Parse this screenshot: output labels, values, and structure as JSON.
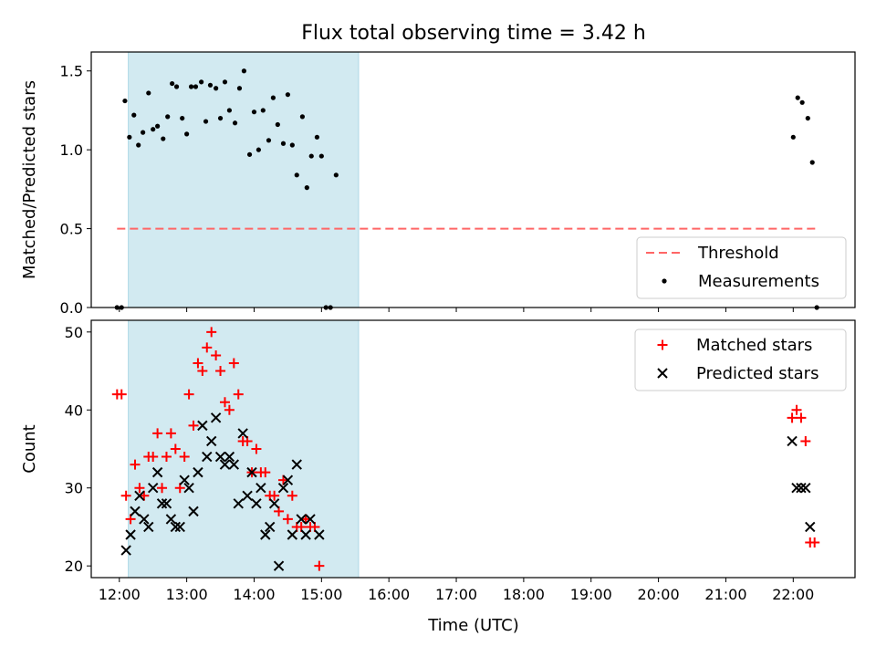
{
  "title": "Flux total observing time = 3.42 h",
  "xlabel": "Time (UTC)",
  "shade_color": "#add8e6",
  "colors": {
    "threshold": "#ff6666",
    "measurements": "#000000",
    "matched": "#ff0000",
    "predicted": "#000000"
  },
  "chart_data": [
    {
      "type": "scatter",
      "panel": "top",
      "ylabel": "Matched/Predicted stars",
      "ylim": [
        0,
        1.62
      ],
      "yticks": [
        "0.0",
        "0.5",
        "1.0",
        "1.5"
      ],
      "ytick_values": [
        0,
        0.5,
        1.0,
        1.5
      ],
      "xlim": [
        "11:35",
        "22:55"
      ],
      "shaded_interval": [
        "12:08",
        "15:33"
      ],
      "legend": {
        "placement": "lower right",
        "entries": [
          "Threshold",
          "Measurements"
        ]
      },
      "series": [
        {
          "name": "Threshold",
          "kind": "dashed-line",
          "points": [
            [
              "11:58",
              0.5
            ],
            [
              "22:20",
              0.5
            ]
          ]
        },
        {
          "name": "Measurements",
          "kind": "dots",
          "points": [
            [
              "11:58",
              0.0
            ],
            [
              "12:02",
              0.0
            ],
            [
              "12:05",
              1.31
            ],
            [
              "12:09",
              1.08
            ],
            [
              "12:13",
              1.22
            ],
            [
              "12:17",
              1.03
            ],
            [
              "12:21",
              1.11
            ],
            [
              "12:26",
              1.36
            ],
            [
              "12:30",
              1.13
            ],
            [
              "12:34",
              1.15
            ],
            [
              "12:39",
              1.07
            ],
            [
              "12:43",
              1.21
            ],
            [
              "12:47",
              1.42
            ],
            [
              "12:51",
              1.4
            ],
            [
              "12:56",
              1.2
            ],
            [
              "13:00",
              1.1
            ],
            [
              "13:04",
              1.4
            ],
            [
              "13:08",
              1.4
            ],
            [
              "13:13",
              1.43
            ],
            [
              "13:17",
              1.18
            ],
            [
              "13:21",
              1.41
            ],
            [
              "13:26",
              1.39
            ],
            [
              "13:30",
              1.2
            ],
            [
              "13:34",
              1.43
            ],
            [
              "13:38",
              1.25
            ],
            [
              "13:43",
              1.17
            ],
            [
              "13:47",
              1.39
            ],
            [
              "13:51",
              1.5
            ],
            [
              "13:56",
              0.97
            ],
            [
              "14:00",
              1.24
            ],
            [
              "14:04",
              1.0
            ],
            [
              "14:08",
              1.25
            ],
            [
              "14:13",
              1.06
            ],
            [
              "14:17",
              1.33
            ],
            [
              "14:21",
              1.16
            ],
            [
              "14:26",
              1.04
            ],
            [
              "14:30",
              1.35
            ],
            [
              "14:34",
              1.03
            ],
            [
              "14:38",
              0.84
            ],
            [
              "14:43",
              1.21
            ],
            [
              "14:47",
              0.76
            ],
            [
              "14:51",
              0.96
            ],
            [
              "14:56",
              1.08
            ],
            [
              "15:00",
              0.96
            ],
            [
              "15:04",
              0.0
            ],
            [
              "15:08",
              0.0
            ],
            [
              "15:13",
              0.84
            ],
            [
              "22:00",
              1.08
            ],
            [
              "22:04",
              1.33
            ],
            [
              "22:08",
              1.3
            ],
            [
              "22:13",
              1.2
            ],
            [
              "22:17",
              0.92
            ],
            [
              "22:21",
              0.0
            ]
          ]
        }
      ]
    },
    {
      "type": "scatter",
      "panel": "bottom",
      "ylabel": "Count",
      "ylim": [
        18.5,
        51.5
      ],
      "yticks": [
        "20",
        "30",
        "40",
        "50"
      ],
      "ytick_values": [
        20,
        30,
        40,
        50
      ],
      "xlim": [
        "11:35",
        "22:55"
      ],
      "xticks": [
        "12:00",
        "13:00",
        "14:00",
        "15:00",
        "16:00",
        "17:00",
        "18:00",
        "19:00",
        "20:00",
        "21:00",
        "22:00"
      ],
      "shaded_interval": [
        "12:08",
        "15:33"
      ],
      "legend": {
        "placement": "upper right",
        "entries": [
          "Matched stars",
          "Predicted stars"
        ]
      },
      "series": [
        {
          "name": "Matched stars",
          "marker": "+",
          "points": [
            [
              "11:58",
              42
            ],
            [
              "12:02",
              42
            ],
            [
              "12:06",
              29
            ],
            [
              "12:10",
              26
            ],
            [
              "12:14",
              33
            ],
            [
              "12:18",
              30
            ],
            [
              "12:22",
              29
            ],
            [
              "12:26",
              34
            ],
            [
              "12:30",
              34
            ],
            [
              "12:34",
              37
            ],
            [
              "12:38",
              30
            ],
            [
              "12:42",
              34
            ],
            [
              "12:46",
              37
            ],
            [
              "12:50",
              35
            ],
            [
              "12:54",
              30
            ],
            [
              "12:58",
              34
            ],
            [
              "13:02",
              42
            ],
            [
              "13:06",
              38
            ],
            [
              "13:10",
              46
            ],
            [
              "13:14",
              45
            ],
            [
              "13:18",
              48
            ],
            [
              "13:22",
              50
            ],
            [
              "13:26",
              47
            ],
            [
              "13:30",
              45
            ],
            [
              "13:34",
              41
            ],
            [
              "13:38",
              40
            ],
            [
              "13:42",
              46
            ],
            [
              "13:46",
              42
            ],
            [
              "13:50",
              36
            ],
            [
              "13:54",
              36
            ],
            [
              "13:58",
              32
            ],
            [
              "14:02",
              35
            ],
            [
              "14:06",
              32
            ],
            [
              "14:10",
              32
            ],
            [
              "14:14",
              29
            ],
            [
              "14:18",
              29
            ],
            [
              "14:22",
              27
            ],
            [
              "14:26",
              31
            ],
            [
              "14:30",
              26
            ],
            [
              "14:34",
              29
            ],
            [
              "14:38",
              25
            ],
            [
              "14:42",
              25
            ],
            [
              "14:46",
              26
            ],
            [
              "14:50",
              25
            ],
            [
              "14:54",
              25
            ],
            [
              "14:58",
              20
            ],
            [
              "21:59",
              39
            ],
            [
              "22:03",
              40
            ],
            [
              "22:07",
              39
            ],
            [
              "22:11",
              36
            ],
            [
              "22:15",
              23
            ],
            [
              "22:19",
              23
            ]
          ]
        },
        {
          "name": "Predicted stars",
          "marker": "x",
          "points": [
            [
              "12:06",
              22
            ],
            [
              "12:10",
              24
            ],
            [
              "12:14",
              27
            ],
            [
              "12:18",
              29
            ],
            [
              "12:22",
              26
            ],
            [
              "12:26",
              25
            ],
            [
              "12:30",
              30
            ],
            [
              "12:34",
              32
            ],
            [
              "12:38",
              28
            ],
            [
              "12:42",
              28
            ],
            [
              "12:46",
              26
            ],
            [
              "12:50",
              25
            ],
            [
              "12:54",
              25
            ],
            [
              "12:58",
              31
            ],
            [
              "13:02",
              30
            ],
            [
              "13:06",
              27
            ],
            [
              "13:10",
              32
            ],
            [
              "13:14",
              38
            ],
            [
              "13:18",
              34
            ],
            [
              "13:22",
              36
            ],
            [
              "13:26",
              39
            ],
            [
              "13:30",
              34
            ],
            [
              "13:34",
              33
            ],
            [
              "13:38",
              34
            ],
            [
              "13:42",
              33
            ],
            [
              "13:46",
              28
            ],
            [
              "13:50",
              37
            ],
            [
              "13:54",
              29
            ],
            [
              "13:58",
              32
            ],
            [
              "14:02",
              28
            ],
            [
              "14:06",
              30
            ],
            [
              "14:10",
              24
            ],
            [
              "14:14",
              25
            ],
            [
              "14:18",
              28
            ],
            [
              "14:22",
              20
            ],
            [
              "14:26",
              30
            ],
            [
              "14:30",
              31
            ],
            [
              "14:34",
              24
            ],
            [
              "14:38",
              33
            ],
            [
              "14:42",
              26
            ],
            [
              "14:46",
              24
            ],
            [
              "14:50",
              26
            ],
            [
              "14:58",
              24
            ],
            [
              "21:59",
              36
            ],
            [
              "22:03",
              30
            ],
            [
              "22:07",
              30
            ],
            [
              "22:11",
              30
            ],
            [
              "22:15",
              25
            ]
          ]
        }
      ]
    }
  ]
}
